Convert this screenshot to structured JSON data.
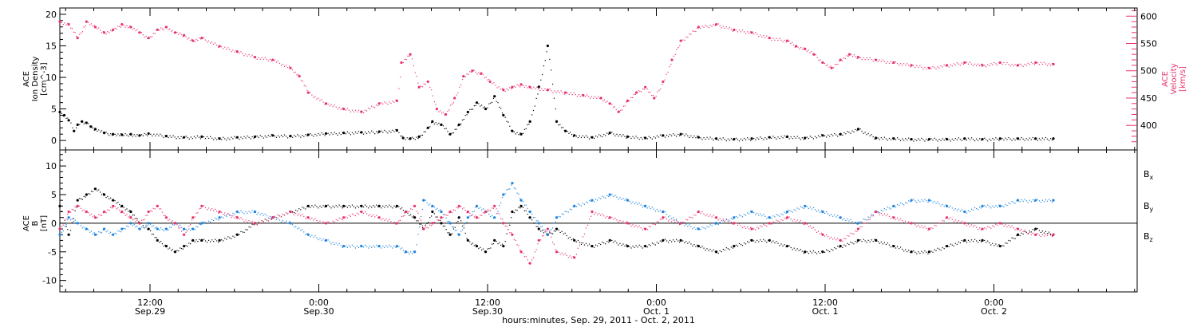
{
  "colors": {
    "density": "#000000",
    "velocity": "#e8336b",
    "bx": "#000000",
    "by": "#1a82e0",
    "bz": "#e8336b",
    "axis": "#000000"
  },
  "chart_data": [
    {
      "type": "scatter",
      "panel": "top",
      "ylabel_left": [
        "ACE",
        "Ion Density",
        "[cm^-3]"
      ],
      "ylabel_right": [
        "ACE",
        "Velocity",
        "[km/s]"
      ],
      "ylim_left": [
        -1.5,
        21
      ],
      "ylim_right": [
        355,
        615
      ],
      "yticks_left": [
        "0",
        "5",
        "10",
        "15",
        "20"
      ],
      "yticks_right": [
        "400",
        "450",
        "500",
        "550",
        "600"
      ],
      "series": [
        {
          "name": "",
          "axis": "left",
          "color": "#000000",
          "x": [
            0,
            0.5,
            1,
            1.6,
            2,
            2.5,
            3,
            3.5,
            4,
            5,
            6,
            7,
            8,
            9,
            10,
            12,
            14,
            16,
            18,
            20,
            22,
            24,
            26,
            28,
            30,
            32,
            34,
            36,
            38,
            38.7,
            39.5,
            40.5,
            41.5,
            42,
            43,
            44,
            45,
            46,
            47,
            48,
            49,
            50,
            51,
            52,
            53,
            54,
            55,
            56,
            57,
            58,
            60,
            62,
            64,
            66,
            68,
            70,
            72,
            74,
            76,
            78,
            80,
            82,
            84,
            86,
            88,
            90,
            92,
            94,
            96,
            98,
            100,
            102,
            104,
            106,
            108,
            110,
            112
          ],
          "y": [
            4.5,
            4.0,
            3.2,
            1.5,
            2.5,
            3.0,
            2.8,
            2.2,
            1.8,
            1.2,
            1.0,
            0.9,
            1.0,
            0.8,
            1.1,
            0.7,
            0.5,
            0.6,
            0.3,
            0.5,
            0.6,
            0.8,
            0.7,
            0.9,
            1.1,
            1.2,
            1.3,
            1.4,
            1.6,
            0.4,
            0.3,
            0.6,
            2.0,
            3.0,
            2.5,
            1.0,
            2.5,
            4.5,
            6.0,
            5.0,
            7.0,
            4.0,
            1.5,
            1.0,
            3.0,
            8.5,
            15.0,
            3.0,
            1.5,
            0.8,
            0.5,
            1.2,
            0.6,
            0.4,
            0.8,
            1.0,
            0.5,
            0.3,
            0.2,
            0.3,
            0.5,
            0.6,
            0.4,
            0.8,
            1.0,
            1.8,
            0.4,
            0.3,
            0.2,
            0.2,
            0.2,
            0.3,
            0.2,
            0.3,
            0.3,
            0.3,
            0.3
          ]
        },
        {
          "name": "",
          "axis": "right",
          "color": "#e8336b",
          "x": [
            0,
            1,
            2,
            3,
            4,
            5,
            6,
            7,
            8,
            9,
            10,
            11,
            12,
            13,
            14,
            15,
            16,
            18,
            20,
            22,
            24,
            26,
            27,
            28,
            30,
            32,
            34,
            36,
            38,
            38.5,
            39.5,
            40.5,
            41.5,
            42.5,
            43.5,
            44.5,
            45.5,
            46.5,
            47.5,
            48.5,
            50,
            51,
            52,
            53,
            55,
            57,
            59,
            61,
            62,
            63,
            64,
            65,
            66,
            67,
            68,
            69,
            70,
            72,
            74,
            76,
            78,
            80,
            82,
            83,
            84,
            85,
            86,
            87,
            88,
            89,
            90,
            92,
            94,
            96,
            98,
            100,
            102,
            104,
            106,
            108,
            110,
            112
          ],
          "y": [
            590,
            585,
            560,
            590,
            580,
            570,
            575,
            585,
            580,
            570,
            560,
            575,
            580,
            570,
            565,
            555,
            560,
            545,
            535,
            525,
            520,
            505,
            490,
            460,
            440,
            430,
            425,
            440,
            445,
            515,
            530,
            470,
            480,
            430,
            420,
            450,
            490,
            500,
            495,
            480,
            465,
            470,
            475,
            470,
            465,
            460,
            455,
            450,
            440,
            425,
            445,
            460,
            470,
            450,
            480,
            520,
            555,
            580,
            585,
            575,
            570,
            560,
            555,
            545,
            540,
            530,
            515,
            505,
            520,
            530,
            525,
            520,
            515,
            510,
            505,
            510,
            515,
            510,
            515,
            510,
            515,
            512
          ]
        }
      ]
    },
    {
      "type": "scatter",
      "panel": "bottom",
      "ylabel": [
        "ACE",
        "B",
        "[nT]"
      ],
      "ylim": [
        -12,
        12.8
      ],
      "yticks": [
        "-10",
        "-5",
        "0",
        "5",
        "10"
      ],
      "legend_position": "right",
      "series": [
        {
          "name": "Bx",
          "color": "#000000",
          "x": [
            0,
            1,
            2,
            3,
            4,
            5,
            6,
            7,
            8,
            9,
            10,
            11,
            12,
            13,
            14,
            15,
            16,
            18,
            20,
            22,
            24,
            26,
            28,
            30,
            32,
            34,
            36,
            38,
            39,
            40,
            41,
            42,
            43,
            44,
            45,
            46,
            47,
            48,
            49,
            50,
            51,
            52,
            53,
            54,
            55,
            56,
            58,
            60,
            62,
            64,
            66,
            68,
            70,
            72,
            74,
            76,
            78,
            80,
            82,
            84,
            86,
            88,
            90,
            92,
            94,
            96,
            98,
            100,
            102,
            104,
            106,
            108,
            110,
            112
          ],
          "y": [
            3,
            -2,
            4,
            5,
            6,
            5,
            4,
            3,
            2,
            0,
            -1,
            -3,
            -4,
            -5,
            -4,
            -3,
            -3,
            -3,
            -2,
            0,
            1,
            2,
            3,
            3,
            3,
            3,
            3,
            3,
            2,
            1,
            -1,
            2,
            0,
            -2,
            1,
            -3,
            -4,
            -5,
            -3,
            -4,
            2,
            3,
            1,
            -1,
            -2,
            -1,
            -3,
            -4,
            -3,
            -4,
            -4,
            -3,
            -3,
            -4,
            -5,
            -4,
            -3,
            -3,
            -4,
            -5,
            -5,
            -4,
            -3,
            -3,
            -4,
            -5,
            -5,
            -4,
            -3,
            -3,
            -4,
            -2,
            -1,
            -2
          ]
        },
        {
          "name": "By",
          "color": "#1a82e0",
          "x": [
            0,
            1,
            2,
            3,
            4,
            5,
            6,
            7,
            8,
            9,
            10,
            11,
            12,
            13,
            14,
            15,
            16,
            18,
            20,
            22,
            24,
            26,
            28,
            30,
            32,
            34,
            36,
            38,
            39,
            40,
            41,
            42,
            43,
            44,
            45,
            46,
            47,
            48,
            49,
            50,
            51,
            52,
            53,
            54,
            55,
            56,
            58,
            60,
            62,
            64,
            66,
            68,
            70,
            72,
            74,
            76,
            78,
            80,
            82,
            84,
            86,
            88,
            90,
            92,
            94,
            96,
            98,
            100,
            102,
            104,
            106,
            108,
            110,
            112
          ],
          "y": [
            -2,
            1,
            0,
            -1,
            -2,
            -1,
            -2,
            -1,
            0,
            -1,
            0,
            -1,
            -1,
            0,
            -1,
            -1,
            0,
            1,
            2,
            2,
            1,
            0,
            -2,
            -3,
            -4,
            -4,
            -4,
            -4,
            -5,
            -5,
            4,
            3,
            2,
            0,
            -2,
            1,
            3,
            2,
            1,
            5,
            7,
            4,
            2,
            0,
            -2,
            1,
            3,
            4,
            5,
            4,
            3,
            2,
            0,
            -1,
            0,
            1,
            2,
            1,
            2,
            3,
            2,
            1,
            0,
            2,
            3,
            4,
            4,
            3,
            2,
            3,
            3,
            4,
            4,
            4
          ]
        },
        {
          "name": "Bz",
          "color": "#e8336b",
          "x": [
            0,
            1,
            2,
            3,
            4,
            5,
            6,
            7,
            8,
            9,
            10,
            11,
            12,
            13,
            14,
            15,
            16,
            18,
            20,
            22,
            24,
            26,
            28,
            30,
            32,
            34,
            36,
            38,
            39,
            40,
            41,
            42,
            43,
            44,
            45,
            46,
            47,
            48,
            49,
            50,
            51,
            52,
            53,
            54,
            55,
            56,
            58,
            60,
            62,
            64,
            66,
            68,
            70,
            72,
            74,
            76,
            78,
            80,
            82,
            84,
            86,
            88,
            90,
            92,
            94,
            96,
            98,
            100,
            102,
            104,
            106,
            108,
            110,
            112
          ],
          "y": [
            -1,
            2,
            3,
            2,
            1,
            2,
            3,
            2,
            1,
            0,
            2,
            3,
            1,
            0,
            -2,
            1,
            3,
            2,
            1,
            0,
            1,
            2,
            1,
            0,
            1,
            2,
            1,
            0,
            2,
            3,
            -1,
            0,
            1,
            2,
            3,
            2,
            1,
            2,
            3,
            0,
            -2,
            -5,
            -7,
            -3,
            -1,
            -5,
            -6,
            2,
            1,
            0,
            -1,
            1,
            0,
            2,
            1,
            0,
            -1,
            0,
            1,
            0,
            -2,
            -3,
            -1,
            2,
            1,
            0,
            -1,
            1,
            0,
            -1,
            0,
            -1,
            -2,
            -2
          ]
        }
      ]
    }
  ],
  "x_axis": {
    "ticks": [
      {
        "hours": 0,
        "label1": "12:00",
        "label2": "Sep.29"
      },
      {
        "hours": 12,
        "label1": "0:00",
        "label2": "Sep.30"
      },
      {
        "hours": 24,
        "label1": "12:00",
        "label2": "Sep.30"
      },
      {
        "hours": 36,
        "label1": "0:00",
        "label2": "Oct. 1"
      },
      {
        "hours": 48,
        "label1": "12:00",
        "label2": "Oct. 1"
      },
      {
        "hours": 60,
        "label1": "0:00",
        "label2": "Oct. 2"
      }
    ],
    "title": "hours:minutes, Sep. 29, 2011 - Oct. 2, 2011"
  }
}
